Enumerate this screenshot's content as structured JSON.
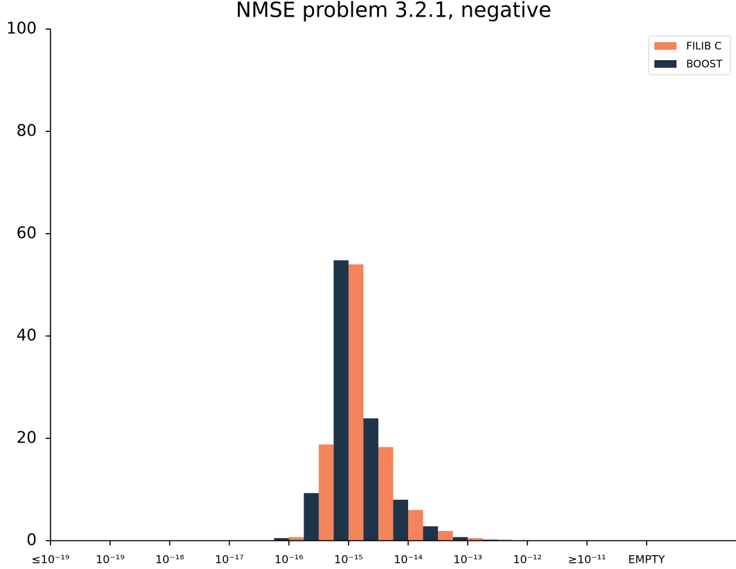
{
  "chart_data": {
    "type": "bar",
    "title": "NMSE problem 3.2.1, negative",
    "x": [
      4,
      4.5,
      5,
      5.5,
      6,
      6.5,
      7,
      7.5
    ],
    "series": [
      {
        "name": "FILIB C",
        "color": "#f4845a",
        "values": [
          0.7,
          18.8,
          54.0,
          18.3,
          6.0,
          1.9,
          0.5,
          0.2
        ]
      },
      {
        "name": "BOOST",
        "color": "#1f3349",
        "values": [
          0.5,
          9.3,
          54.8,
          23.9,
          8.0,
          2.8,
          0.7,
          0.2
        ]
      }
    ],
    "xlim": [
      0,
      11.5
    ],
    "xticks": [
      {
        "value": 0,
        "label": "≤10⁻¹⁹"
      },
      {
        "value": 1,
        "label": "10⁻¹⁹"
      },
      {
        "value": 2,
        "label": "10⁻¹⁸"
      },
      {
        "value": 3,
        "label": "10⁻¹⁷"
      },
      {
        "value": 4,
        "label": "10⁻¹⁶"
      },
      {
        "value": 5,
        "label": "10⁻¹⁵"
      },
      {
        "value": 6,
        "label": "10⁻¹⁴"
      },
      {
        "value": 7,
        "label": "10⁻¹³"
      },
      {
        "value": 8,
        "label": "10⁻¹²"
      },
      {
        "value": 9,
        "label": "≥10⁻¹¹"
      },
      {
        "value": 10,
        "label": "EMPTY"
      }
    ],
    "ylim": [
      0,
      100
    ],
    "yticks": [
      0,
      20,
      40,
      60,
      80,
      100
    ],
    "legend": "upper right"
  }
}
